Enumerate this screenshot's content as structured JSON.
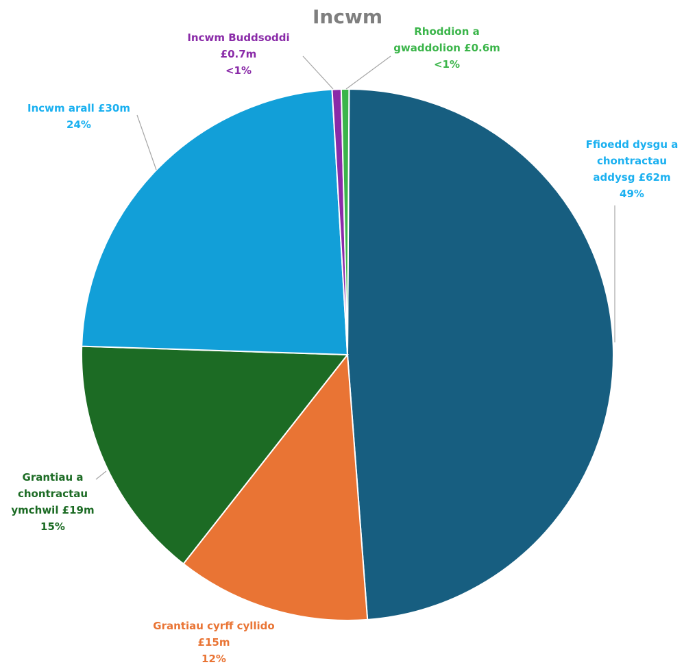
{
  "chart_data": {
    "type": "pie",
    "title": "Incwm",
    "unit": "£m",
    "slices": [
      {
        "name": "Ffioedd dysgu a chontractau addysg",
        "value": 62,
        "percent": "49%",
        "color": "#175e80",
        "label_lines": [
          "Ffioedd dysgu a",
          "chontractau",
          "addysg £62m",
          "49%"
        ],
        "label_color": "#1ab0f0"
      },
      {
        "name": "Grantiau cyrff cyllido",
        "value": 15,
        "percent": "12%",
        "color": "#e97434",
        "label_lines": [
          "Grantiau cyrff cyllido",
          "£15m",
          "12%"
        ],
        "label_color": "#e97434"
      },
      {
        "name": "Grantiau a chontractau ymchwil",
        "value": 19,
        "percent": "15%",
        "color": "#1c6b24",
        "label_lines": [
          "Grantiau a",
          "chontractau",
          "ymchwil £19m",
          "15%"
        ],
        "label_color": "#1c6b24"
      },
      {
        "name": "Incwm arall",
        "value": 30,
        "percent": "24%",
        "color": "#129fd8",
        "label_lines": [
          "Incwm arall £30m",
          "24%"
        ],
        "label_color": "#1ab0f0"
      },
      {
        "name": "Incwm Buddsoddi",
        "value": 0.7,
        "percent": "<1%",
        "color": "#8a2ba8",
        "label_lines": [
          "Incwm Buddsoddi",
          "£0.7m",
          "<1%"
        ],
        "label_color": "#8a2ba8"
      },
      {
        "name": "Rhoddion a gwaddolion",
        "value": 0.6,
        "percent": "<1%",
        "color": "#3bb54a",
        "label_lines": [
          "Rhoddion a",
          "gwaddolion £0.6m",
          "<1%"
        ],
        "label_color": "#3bb54a"
      }
    ]
  }
}
